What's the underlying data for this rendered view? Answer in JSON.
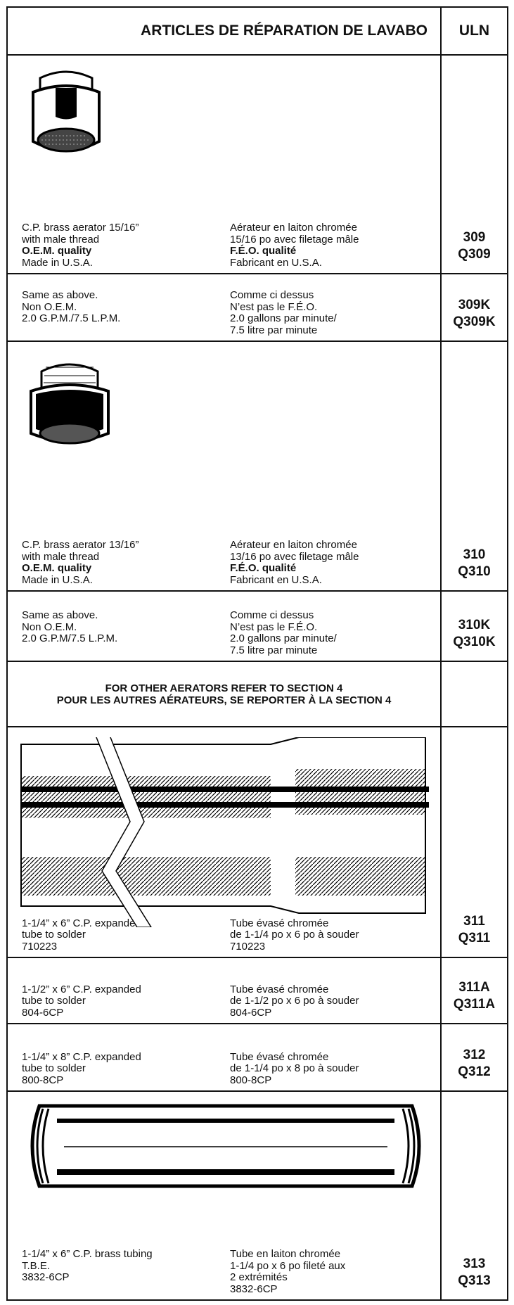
{
  "header": {
    "title": "ARTICLES DE RÉPARATION DE LAVABO",
    "uln": "ULN"
  },
  "rows": [
    {
      "en": [
        "C.P. brass aerator 15/16”",
        "with male thread",
        "O.E.M. quality",
        "Made in U.S.A."
      ],
      "fr": [
        "Aérateur en laiton chromée",
        "15/16 po avec filetage mâle",
        "F.É.O. qualité",
        "Fabricant en U.S.A."
      ],
      "uln": [
        "309",
        "Q309"
      ]
    },
    {
      "en": [
        "Same as above.",
        "Non O.E.M.",
        "2.0 G.P.M./7.5 L.P.M."
      ],
      "fr": [
        "Comme ci dessus",
        "N’est pas le F.É.O.",
        "2.0 gallons par minute/",
        "7.5 litre par minute"
      ],
      "uln": [
        "309K",
        "Q309K"
      ]
    },
    {
      "en": [
        "C.P. brass aerator 13/16”",
        "with male thread",
        "O.E.M. quality",
        "Made in U.S.A."
      ],
      "fr": [
        "Aérateur en laiton chromée",
        "13/16 po avec filetage mâle",
        "F.É.O. qualité",
        "Fabricant en U.S.A."
      ],
      "uln": [
        "310",
        "Q310"
      ]
    },
    {
      "en": [
        "Same as above.",
        "Non O.E.M.",
        "2.0 G.P.M/7.5 L.P.M."
      ],
      "fr": [
        "Comme ci dessus",
        "N’est pas le F.É.O.",
        "2.0 gallons par minute/",
        "7.5 litre par minute"
      ],
      "uln": [
        "310K",
        "Q310K"
      ]
    },
    {
      "note": [
        "FOR OTHER AERATORS REFER TO SECTION 4",
        "POUR LES AUTRES AÉRATEURS, SE REPORTER À LA SECTION 4"
      ]
    },
    {
      "en": [
        "1-1/4” x 6” C.P. expanded",
        "tube to solder",
        "710223"
      ],
      "fr": [
        "Tube évasé chromée",
        "de 1-1/4 po x 6 po à souder",
        "710223"
      ],
      "uln": [
        "311",
        "Q311"
      ]
    },
    {
      "en": [
        "1-1/2” x 6” C.P. expanded",
        "tube to solder",
        "804-6CP"
      ],
      "fr": [
        "Tube évasé chromée",
        "de 1-1/2 po x 6 po à souder",
        "804-6CP"
      ],
      "uln": [
        "311A",
        "Q311A"
      ]
    },
    {
      "en": [
        "1-1/4” x 8” C.P. expanded",
        "tube to solder",
        "800-8CP"
      ],
      "fr": [
        "Tube évasé chromée",
        "de 1-1/4 po x 8 po à souder",
        "800-8CP"
      ],
      "uln": [
        "312",
        "Q312"
      ]
    },
    {
      "en": [
        "1-1/4” x 6” C.P. brass tubing",
        "T.B.E.",
        "3832-6CP"
      ],
      "fr": [
        "Tube en laiton chromée",
        "1-1/4 po x 6 po fileté aux",
        "2 extrémités",
        "3832-6CP"
      ],
      "uln": [
        "313",
        "Q313"
      ]
    }
  ]
}
